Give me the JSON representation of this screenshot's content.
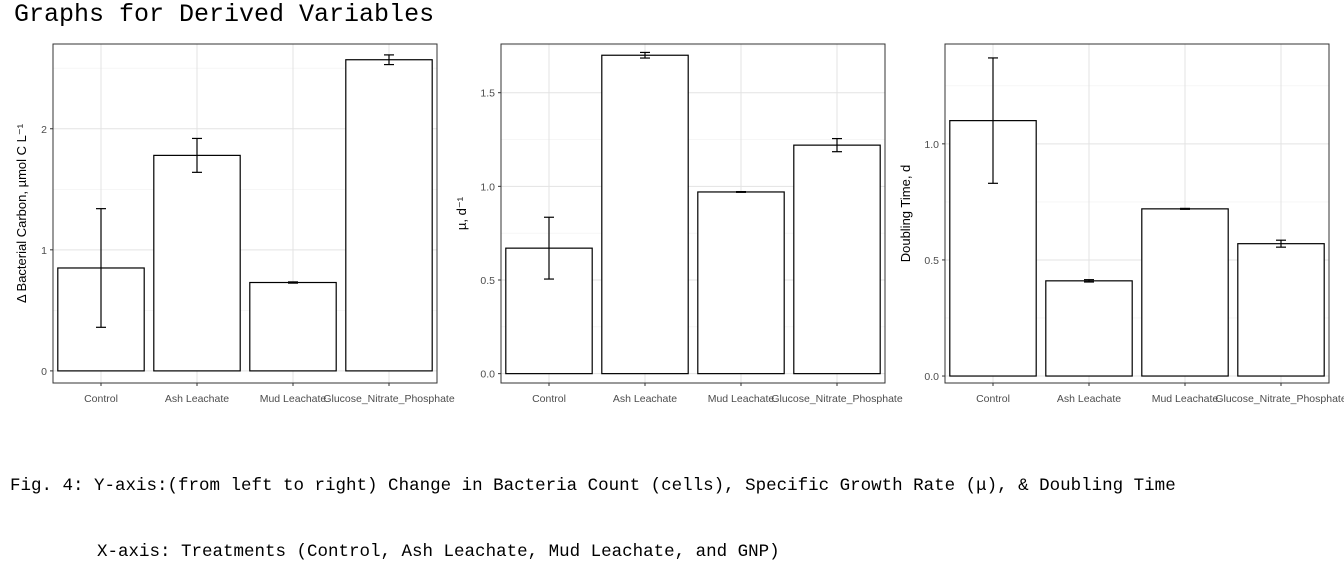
{
  "page": {
    "title": "Graphs for Derived Variables",
    "caption_line1": "Fig. 4: Y-axis:(from left to right) Change in Bacteria Count (cells), Specific Growth Rate (μ), & Doubling Time",
    "caption_line2": "X-axis: Treatments (Control, Ash Leachate, Mud Leachate, and GNP)"
  },
  "chart_data": [
    {
      "type": "bar",
      "categories": [
        "Control",
        "Ash Leachate",
        "Mud Leachate",
        "Glucose_Nitrate_Phosphate"
      ],
      "values": [
        0.85,
        1.78,
        0.73,
        2.57
      ],
      "errors": [
        0.49,
        0.14,
        0.005,
        0.04
      ],
      "ylabel": "Δ Bacterial Carbon, µmol C L⁻¹",
      "ylim": [
        -0.1,
        2.7
      ],
      "yticks": [
        0,
        1,
        2
      ],
      "ytick_labels": [
        "0",
        "1",
        "2"
      ],
      "grid": true
    },
    {
      "type": "bar",
      "categories": [
        "Control",
        "Ash Leachate",
        "Mud Leachate",
        "Glucose_Nitrate_Phosphate"
      ],
      "values": [
        0.67,
        1.7,
        0.97,
        1.22
      ],
      "errors": [
        0.165,
        0.015,
        0.002,
        0.035
      ],
      "ylabel": "µ, d⁻¹",
      "ylim": [
        -0.05,
        1.76
      ],
      "yticks": [
        0.0,
        0.5,
        1.0,
        1.5
      ],
      "ytick_labels": [
        "0.0",
        "0.5",
        "1.0",
        "1.5"
      ],
      "grid": true
    },
    {
      "type": "bar",
      "categories": [
        "Control",
        "Ash Leachate",
        "Mud Leachate",
        "Glucose_Nitrate_Phosphate"
      ],
      "values": [
        1.1,
        0.41,
        0.72,
        0.57
      ],
      "errors": [
        0.27,
        0.005,
        0.002,
        0.015
      ],
      "ylabel": "Doubling Time, d",
      "ylim": [
        -0.03,
        1.43
      ],
      "yticks": [
        0.0,
        0.5,
        1.0
      ],
      "ytick_labels": [
        "0.0",
        "0.5",
        "1.0"
      ],
      "grid": true
    }
  ]
}
